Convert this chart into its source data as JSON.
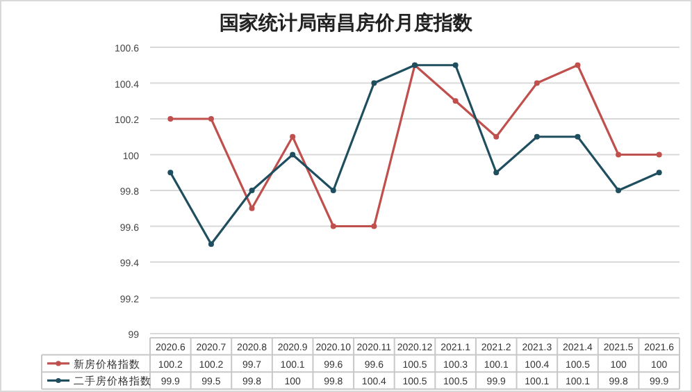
{
  "chart_data": {
    "type": "line",
    "title": "国家统计局南昌房价月度指数",
    "categories": [
      "2020.6",
      "2020.7",
      "2020.8",
      "2020.9",
      "2020.10",
      "2020.11",
      "2020.12",
      "2021.1",
      "2021.2",
      "2021.3",
      "2021.4",
      "2021.5",
      "2021.6"
    ],
    "series": [
      {
        "name": "新房价格指数",
        "color": "#c0504d",
        "values": [
          100.2,
          100.2,
          99.7,
          100.1,
          99.6,
          99.6,
          100.5,
          100.3,
          100.1,
          100.4,
          100.5,
          100,
          100
        ]
      },
      {
        "name": "二手房价格指数",
        "color": "#1f4e5f",
        "values": [
          99.9,
          99.5,
          99.8,
          100,
          99.8,
          100.4,
          100.5,
          100.5,
          99.9,
          100.1,
          100.1,
          99.8,
          99.9
        ]
      }
    ],
    "ylim": [
      99,
      100.6
    ],
    "yticks": [
      99,
      99.2,
      99.4,
      99.6,
      99.8,
      100,
      100.2,
      100.4,
      100.6
    ],
    "grid": "y",
    "marker": "circle",
    "line_style": "solid",
    "data_labels": true,
    "legend": "bottom left"
  }
}
